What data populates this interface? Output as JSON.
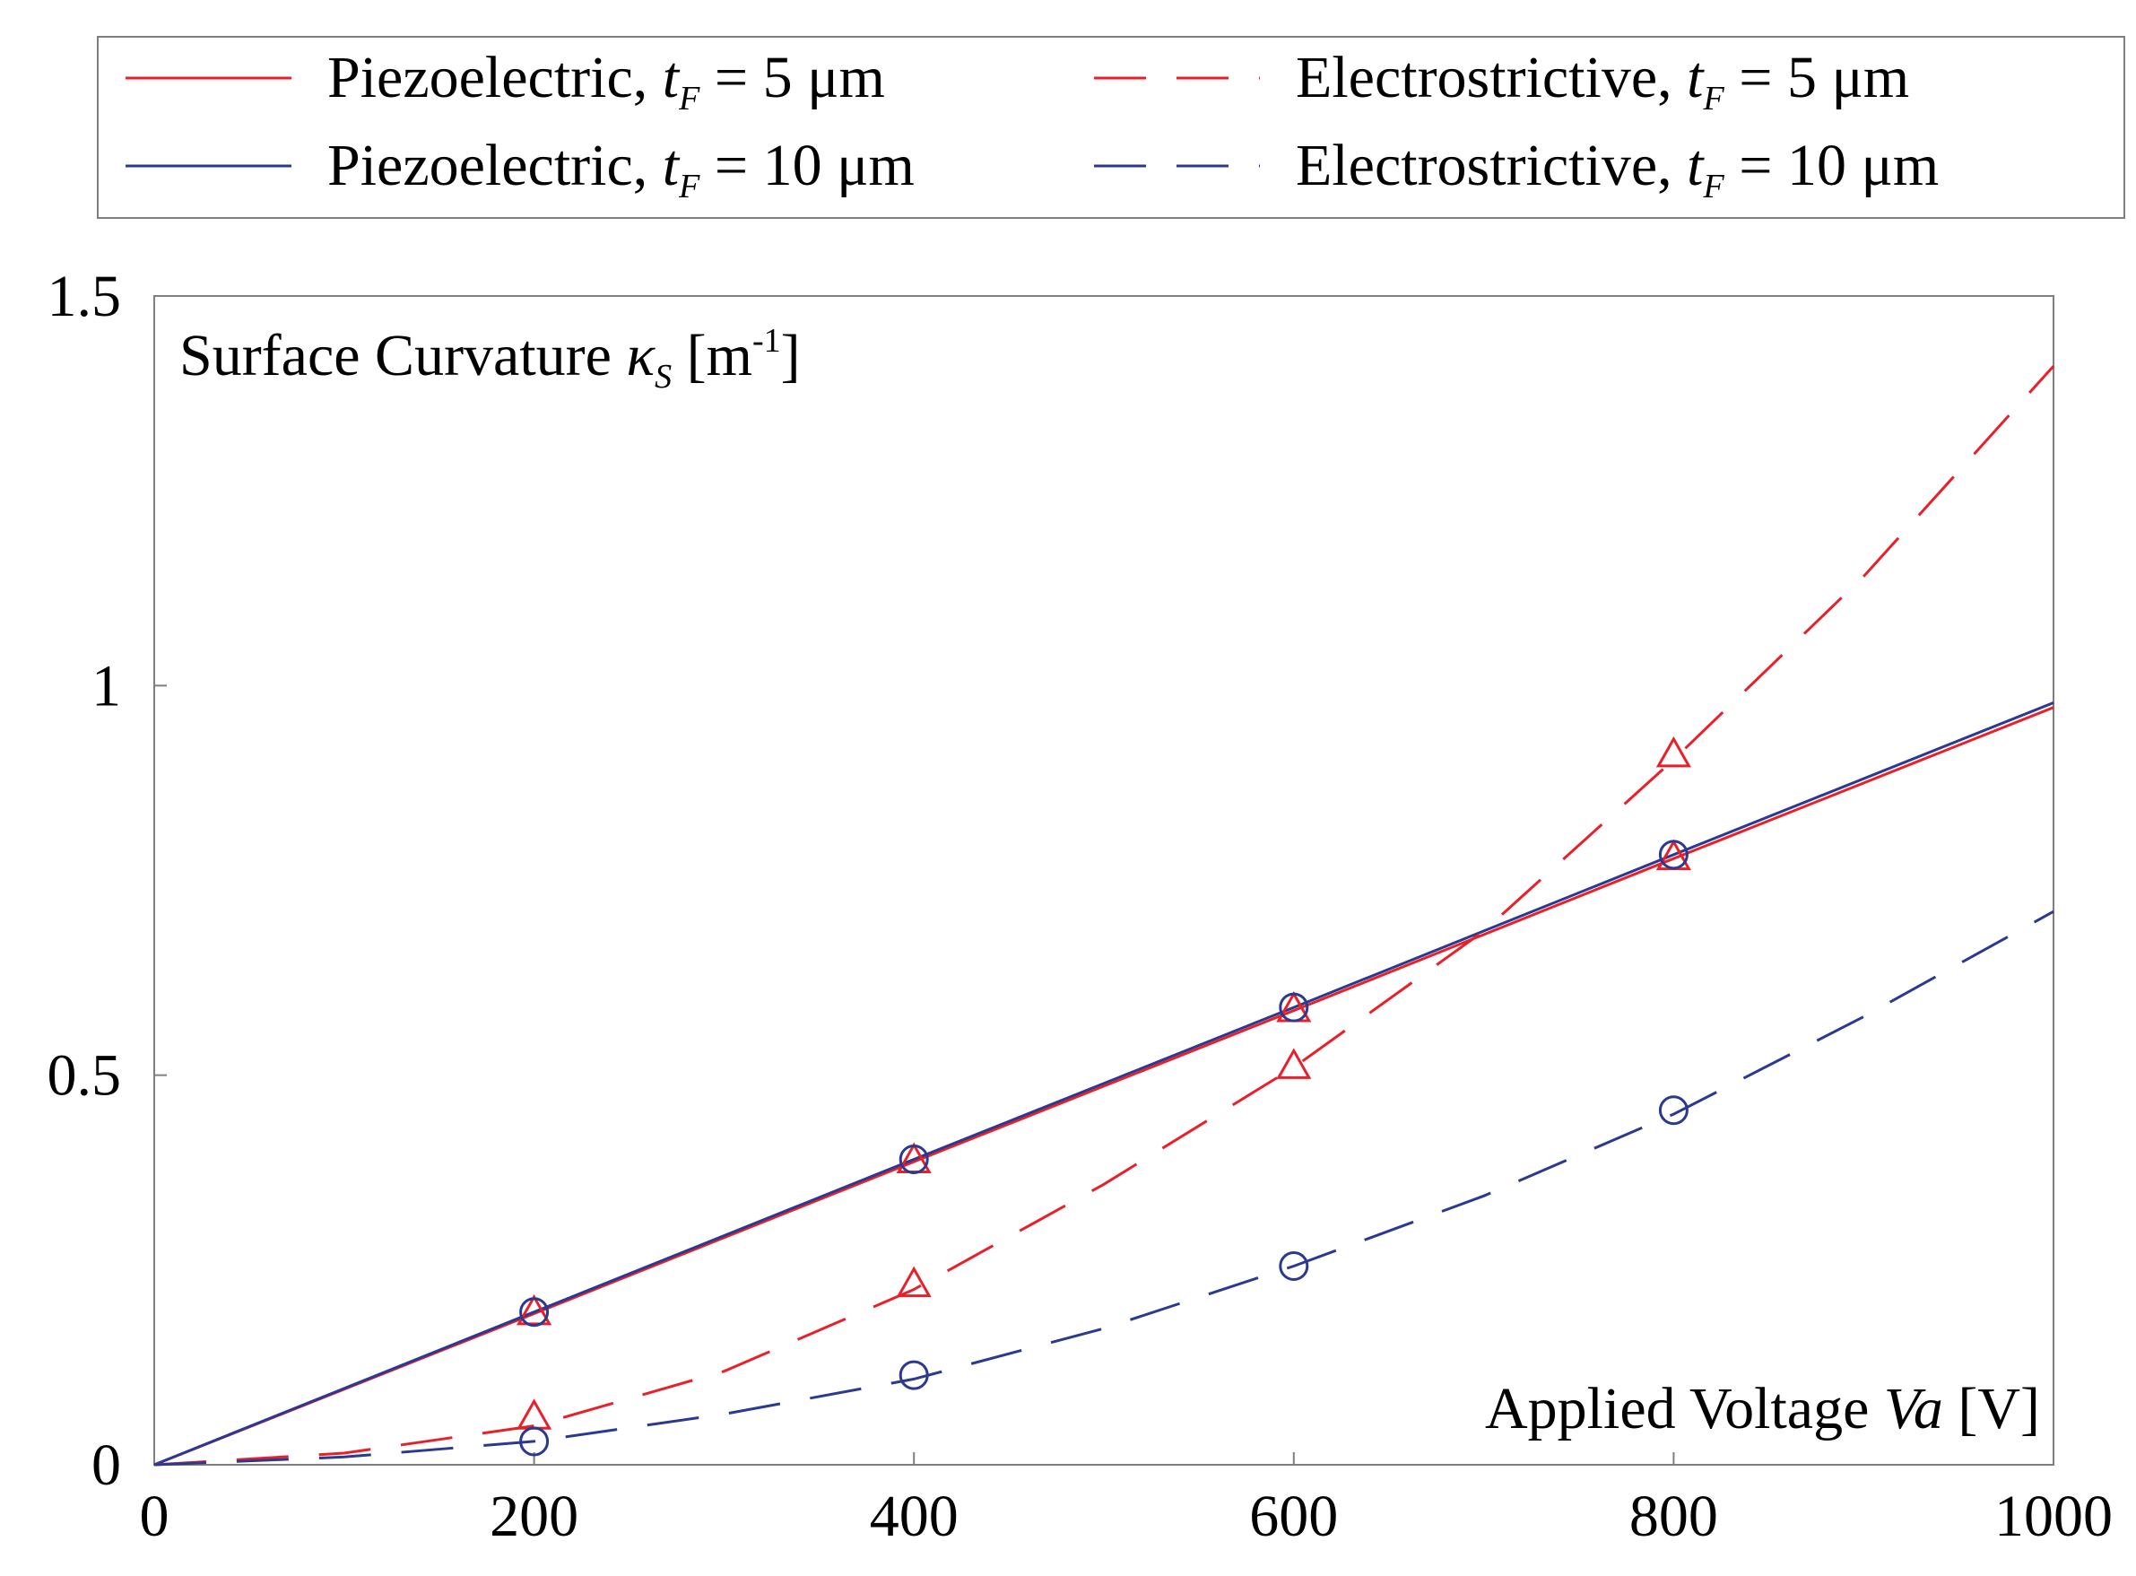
{
  "chart_data": {
    "type": "line",
    "title": "",
    "xlabel": {
      "text": "Applied Voltage ",
      "symbol": "Va",
      "unit": " [V]"
    },
    "ylabel": {
      "text": "Surface Curvature ",
      "symbol": "κ",
      "subscript": "S",
      "unit": " [m",
      "superscript": "-1",
      "unit_close": "]"
    },
    "xlim": [
      0,
      1000
    ],
    "ylim": [
      0,
      1.5
    ],
    "xticks": [
      0,
      200,
      400,
      600,
      800,
      1000
    ],
    "yticks": [
      0,
      0.5,
      1,
      1.5
    ],
    "xtick_labels": [
      "0",
      "200",
      "400",
      "600",
      "800",
      "1000"
    ],
    "ytick_labels": [
      "0",
      "0.5",
      "1",
      "1.5"
    ],
    "grid": false,
    "legend_position": "top (outside plot)",
    "series": [
      {
        "name": "Piezoelectric, t_F = 5 μm",
        "label_prefix": "Piezoelectric, ",
        "label_suffix": " = 5 μm",
        "color": "#e8202a",
        "style": "solid",
        "marker": "triangle",
        "x": [
          0,
          200,
          400,
          600,
          800,
          1000
        ],
        "values": [
          0,
          0.194,
          0.389,
          0.583,
          0.778,
          0.972
        ]
      },
      {
        "name": "Piezoelectric, t_F = 10 μm",
        "label_prefix": "Piezoelectric, ",
        "label_suffix": " = 10 μm",
        "color": "#2b3990",
        "style": "solid",
        "marker": "circle",
        "x": [
          0,
          200,
          400,
          600,
          800,
          1000
        ],
        "values": [
          0,
          0.196,
          0.392,
          0.587,
          0.783,
          0.978
        ]
      },
      {
        "name": "Electrostrictive, t_F = 5 μm",
        "label_prefix": "Electrostrictive, ",
        "label_suffix": " = 5 μm",
        "color": "#e8202a",
        "style": "dashed",
        "marker": "triangle",
        "x": [
          0,
          100,
          200,
          300,
          400,
          500,
          600,
          700,
          800,
          900,
          1000
        ],
        "values": [
          0,
          0.015,
          0.05,
          0.12,
          0.225,
          0.36,
          0.51,
          0.685,
          0.905,
          1.14,
          1.41
        ],
        "marker_x": [
          200,
          400,
          600,
          800
        ],
        "marker_values": [
          0.06,
          0.23,
          0.51,
          0.91
        ]
      },
      {
        "name": "Electrostrictive, t_F = 10 μm",
        "label_prefix": "Electrostrictive, ",
        "label_suffix": " = 10 μm",
        "color": "#2b3990",
        "style": "dashed",
        "marker": "circle",
        "x": [
          0,
          100,
          200,
          300,
          400,
          500,
          600,
          700,
          800,
          900,
          1000
        ],
        "values": [
          0,
          0.01,
          0.03,
          0.065,
          0.11,
          0.175,
          0.255,
          0.345,
          0.45,
          0.575,
          0.71
        ],
        "marker_x": [
          200,
          400,
          600,
          800
        ],
        "marker_values": [
          0.03,
          0.115,
          0.255,
          0.455
        ]
      }
    ]
  }
}
